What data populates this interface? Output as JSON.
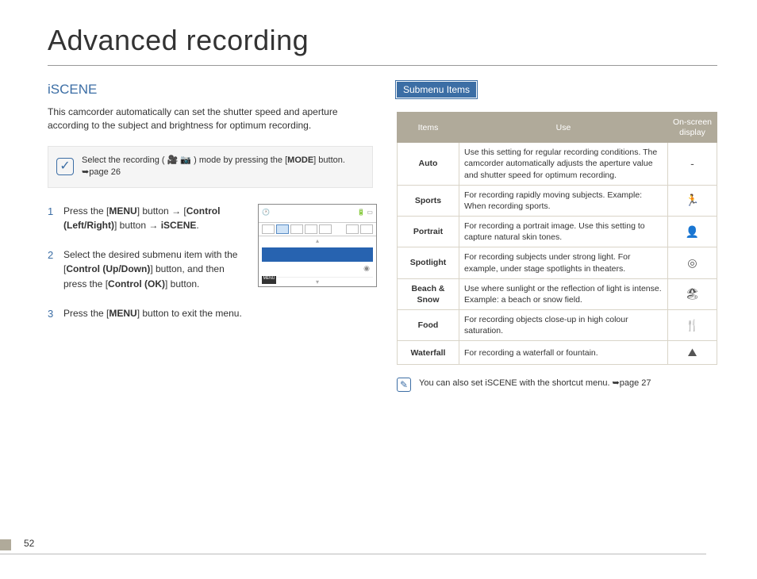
{
  "pageTitle": "Advanced recording",
  "pageNumber": "52",
  "left": {
    "sectionTitle": "iSCENE",
    "intro": "This camcorder automatically can set the shutter speed and aperture according to the subject and brightness for optimum recording.",
    "infoBox": {
      "prefix": "Select the recording ( ",
      "suffix": " ) mode by pressing the [",
      "mode": "MODE",
      "tail": "] button. ➥page 26"
    },
    "steps": [
      {
        "num": "1",
        "html": "Press the [<b>MENU</b>] button → [<b>Control (Left/Right)</b>] button → <b>iSCENE</b>."
      },
      {
        "num": "2",
        "html": "Select the desired submenu item with the [<b>Control (Up/Down)</b>] button, and then press the [<b>Control (OK)</b>] button."
      },
      {
        "num": "3",
        "html": "Press the [<b>MENU</b>] button to exit the menu."
      }
    ]
  },
  "right": {
    "submenuLabel": "Submenu Items",
    "table": {
      "headers": [
        "Items",
        "Use",
        "On-screen display"
      ],
      "rows": [
        {
          "item": "Auto",
          "use": "Use this setting for regular recording conditions. The camcorder automatically adjusts the aperture value and shutter speed for optimum recording.",
          "osd": "-"
        },
        {
          "item": "Sports",
          "use": "For recording rapidly moving subjects. Example: When recording sports.",
          "osd": "icon"
        },
        {
          "item": "Portrait",
          "use": "For recording a portrait image. Use this setting to capture natural skin tones.",
          "osd": "icon"
        },
        {
          "item": "Spotlight",
          "use": "For recording subjects under strong light. For example, under stage spotlights in theaters.",
          "osd": "icon"
        },
        {
          "item": "Beach & Snow",
          "use": "Use where sunlight or the reflection of light is intense. Example: a beach or snow field.",
          "osd": "icon"
        },
        {
          "item": "Food",
          "use": "For recording objects close-up in high colour saturation.",
          "osd": "icon"
        },
        {
          "item": "Waterfall",
          "use": "For recording a waterfall or fountain.",
          "osd": "icon"
        }
      ]
    },
    "footnote": "You can also set iSCENE with the shortcut menu. ➥page 27"
  },
  "osdGlyphs": {
    "Sports": "🏃",
    "Portrait": "👤",
    "Spotlight": "◎",
    "Beach & Snow": "🏖",
    "Food": "🍴",
    "Waterfall": "⛰"
  },
  "colors": {
    "accent": "#3c6ea5",
    "tableHeader": "#b0aa9a",
    "tableBorder": "#d9d4c8"
  }
}
